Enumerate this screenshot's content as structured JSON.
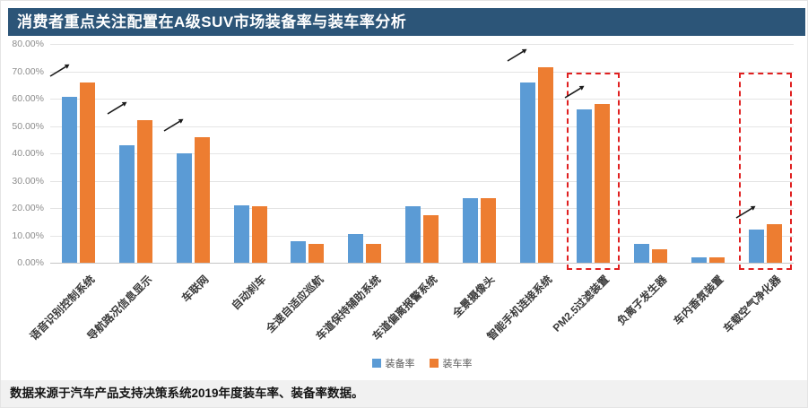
{
  "header": {
    "title": "消费者重点关注配置在A级SUV市场装备率与装车率分析"
  },
  "footer": {
    "source_note": "数据来源于汽车产品支持决策系统2019年度装车率、装备率数据。"
  },
  "colors": {
    "header_bg": "#2C5578",
    "footer_bg": "#F1F1F1",
    "series_blue": "#5B9BD5",
    "series_orange": "#ED7D31",
    "gridline": "#E4E4E4",
    "axis_text": "#8C8C8C",
    "category_text": "#3A3A3A",
    "highlight_red": "#E02020",
    "arrow_black": "#1A1A1A"
  },
  "chart_data": {
    "type": "bar",
    "title": "消费者重点关注配置在A级SUV市场装备率与装车率分析",
    "categories": [
      "语音识别控制系统",
      "导航路况信息显示",
      "车联网",
      "自动刹车",
      "全速自适应巡航",
      "车道保持辅助系统",
      "车道偏离报警系统",
      "全景摄像头",
      "智能手机连接系统",
      "PM2.5过滤装置",
      "负离子发生器",
      "车内香氛装置",
      "车载空气净化器"
    ],
    "series": [
      {
        "name": "装备率",
        "color": "#5B9BD5",
        "values": [
          60.5,
          43,
          40,
          21,
          8,
          10.5,
          20.5,
          23.5,
          66,
          56,
          7,
          2,
          12
        ]
      },
      {
        "name": "装车率",
        "color": "#ED7D31",
        "values": [
          66,
          52,
          46,
          20.5,
          7,
          7,
          17.5,
          23.5,
          71.5,
          58,
          5,
          2,
          14
        ]
      }
    ],
    "ylim": [
      0,
      80
    ],
    "yticks": [
      "0.00%",
      "10.00%",
      "20.00%",
      "30.00%",
      "40.00%",
      "50.00%",
      "60.00%",
      "70.00%",
      "80.00%"
    ],
    "grid": true,
    "legend_position": "bottom",
    "xlabel": "",
    "ylabel": "",
    "annotations": {
      "arrow_symbol": "↗",
      "arrow_on": [
        "语音识别控制系统",
        "导航路况信息显示",
        "车联网",
        "智能手机连接系统",
        "PM2.5过滤装置",
        "车载空气净化器"
      ],
      "highlight_box_on": [
        "PM2.5过滤装置",
        "车载空气净化器"
      ],
      "box_top_value": 69.5,
      "highlight_color": "#E02020"
    }
  }
}
